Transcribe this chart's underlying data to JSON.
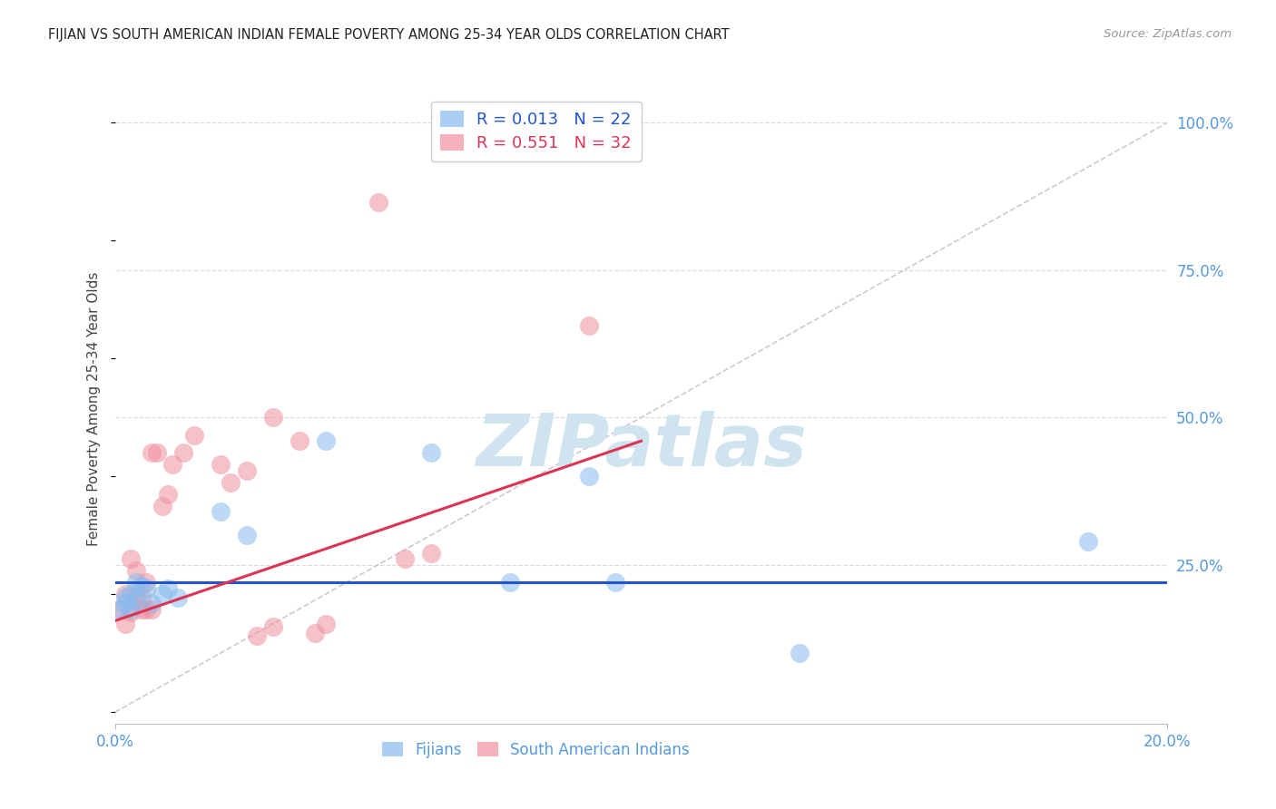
{
  "title": "FIJIAN VS SOUTH AMERICAN INDIAN FEMALE POVERTY AMONG 25-34 YEAR OLDS CORRELATION CHART",
  "source": "Source: ZipAtlas.com",
  "ylabel": "Female Poverty Among 25-34 Year Olds",
  "xlim": [
    0.0,
    0.2
  ],
  "ylim": [
    -0.02,
    1.05
  ],
  "ytick_positions": [
    0.25,
    0.5,
    0.75,
    1.0
  ],
  "ytick_labels": [
    "25.0%",
    "50.0%",
    "75.0%",
    "100.0%"
  ],
  "title_color": "#222222",
  "source_color": "#999999",
  "grid_color": "#dddddd",
  "background_color": "#ffffff",
  "fijian_color": "#88bbee",
  "sa_indian_color": "#f090a0",
  "trend_blue_color": "#2255cc",
  "trend_pink_color": "#dd3355",
  "diagonal_color": "#ccbbcc",
  "watermark_color": "#d0e4f0",
  "fijian_x": [
    0.001,
    0.002,
    0.002,
    0.003,
    0.003,
    0.004,
    0.004,
    0.005,
    0.006,
    0.007,
    0.009,
    0.01,
    0.012,
    0.02,
    0.025,
    0.04,
    0.06,
    0.075,
    0.09,
    0.095,
    0.13,
    0.185
  ],
  "fijian_y": [
    0.175,
    0.185,
    0.195,
    0.175,
    0.2,
    0.19,
    0.22,
    0.215,
    0.21,
    0.185,
    0.2,
    0.21,
    0.195,
    0.34,
    0.3,
    0.46,
    0.44,
    0.22,
    0.4,
    0.22,
    0.1,
    0.29
  ],
  "sa_indian_x": [
    0.001,
    0.002,
    0.002,
    0.003,
    0.003,
    0.004,
    0.004,
    0.005,
    0.005,
    0.006,
    0.006,
    0.007,
    0.007,
    0.008,
    0.009,
    0.01,
    0.011,
    0.013,
    0.015,
    0.02,
    0.022,
    0.025,
    0.027,
    0.03,
    0.03,
    0.035,
    0.038,
    0.04,
    0.05,
    0.055,
    0.06,
    0.09
  ],
  "sa_indian_y": [
    0.175,
    0.15,
    0.2,
    0.17,
    0.26,
    0.2,
    0.24,
    0.195,
    0.175,
    0.22,
    0.175,
    0.175,
    0.44,
    0.44,
    0.35,
    0.37,
    0.42,
    0.44,
    0.47,
    0.42,
    0.39,
    0.41,
    0.13,
    0.145,
    0.5,
    0.46,
    0.135,
    0.15,
    0.865,
    0.26,
    0.27,
    0.655
  ],
  "blue_trend_x": [
    0.0,
    0.2
  ],
  "blue_trend_y": [
    0.22,
    0.22
  ],
  "pink_trend_x": [
    0.0,
    0.1
  ],
  "pink_trend_y": [
    0.155,
    0.46
  ]
}
